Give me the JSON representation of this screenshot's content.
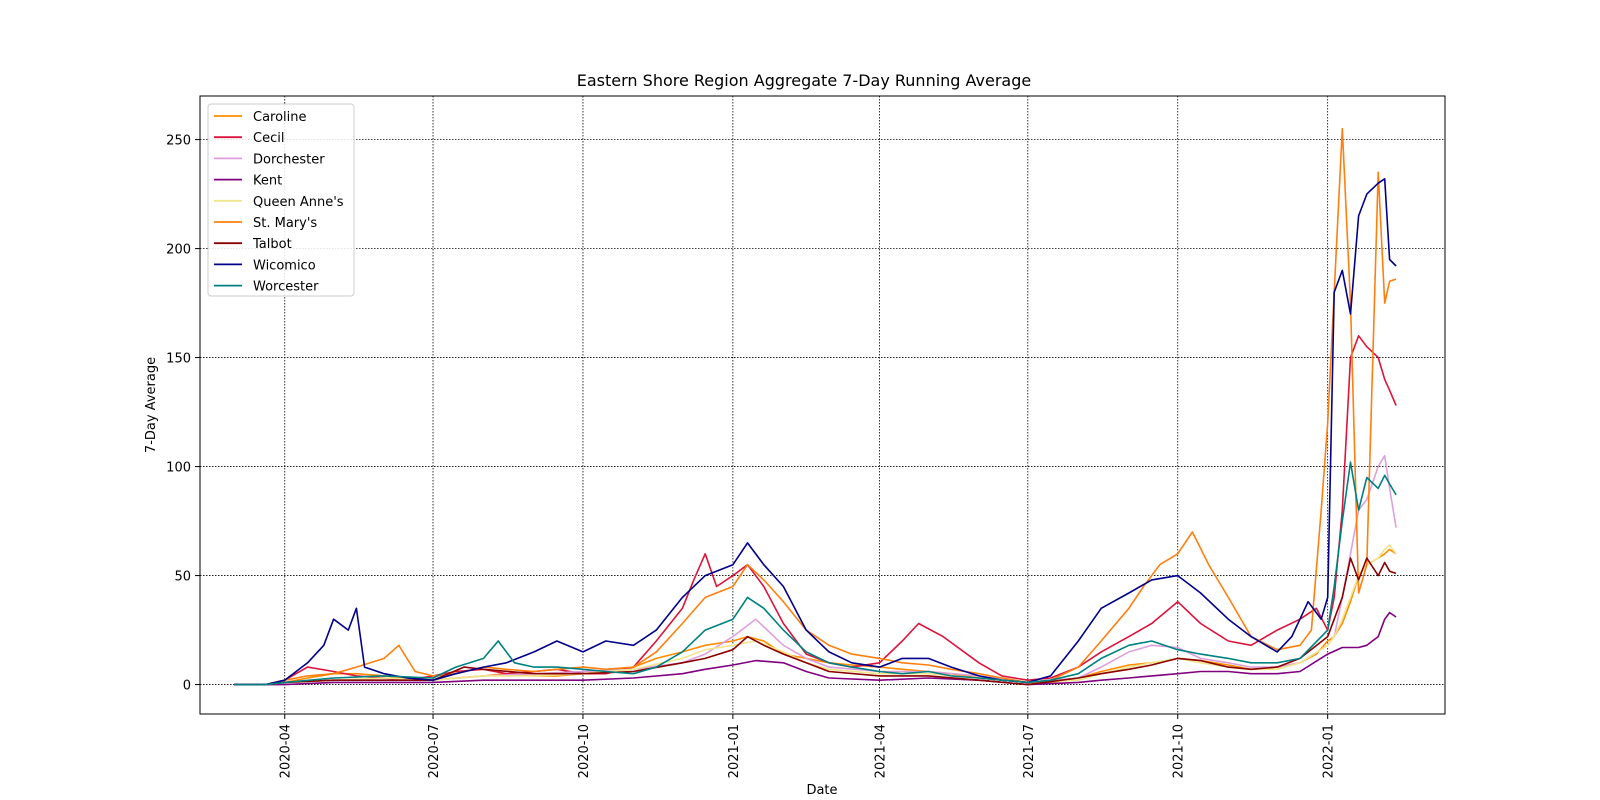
{
  "chart_data": {
    "type": "line",
    "title": "Eastern Shore Region Aggregate 7-Day Running Average",
    "xlabel": "Date",
    "ylabel": "7-Day Average",
    "x_ticks": [
      "2020-04",
      "2020-07",
      "2020-10",
      "2021-01",
      "2021-04",
      "2021-07",
      "2021-10",
      "2022-01"
    ],
    "x_tick_dates": [
      "2020-04-01",
      "2020-07-01",
      "2020-10-01",
      "2021-01-01",
      "2021-04-01",
      "2021-07-01",
      "2021-10-01",
      "2022-01-01"
    ],
    "y_ticks": [
      0,
      50,
      100,
      150,
      200,
      250
    ],
    "xlim": [
      "2020-02-09",
      "2022-03-14"
    ],
    "ylim": [
      -13.5,
      270
    ],
    "grid": true,
    "legend_position": "upper-left",
    "series": [
      {
        "name": "Caroline",
        "color": "#ff8c00",
        "x": [
          "2020-03-01",
          "2020-03-20",
          "2020-04-01",
          "2020-04-15",
          "2020-05-01",
          "2020-05-15",
          "2020-06-01",
          "2020-06-15",
          "2020-07-01",
          "2020-07-15",
          "2020-08-01",
          "2020-08-15",
          "2020-09-01",
          "2020-09-15",
          "2020-10-01",
          "2020-10-15",
          "2020-11-01",
          "2020-11-15",
          "2020-12-01",
          "2020-12-15",
          "2021-01-01",
          "2021-01-10",
          "2021-01-20",
          "2021-02-01",
          "2021-02-15",
          "2021-03-01",
          "2021-03-15",
          "2021-04-01",
          "2021-04-15",
          "2021-05-01",
          "2021-05-15",
          "2021-06-01",
          "2021-06-15",
          "2021-07-01",
          "2021-07-15",
          "2021-08-01",
          "2021-08-15",
          "2021-09-01",
          "2021-09-15",
          "2021-09-25",
          "2021-10-01",
          "2021-10-15",
          "2021-11-01",
          "2021-11-15",
          "2021-12-01",
          "2021-12-15",
          "2021-12-25",
          "2022-01-01",
          "2022-01-05",
          "2022-01-10",
          "2022-01-15",
          "2022-01-20",
          "2022-01-25",
          "2022-02-01",
          "2022-02-05",
          "2022-02-08",
          "2022-02-12"
        ],
        "y": [
          0,
          0,
          1,
          3,
          5,
          5,
          4,
          3,
          2,
          3,
          4,
          5,
          4,
          4,
          5,
          6,
          8,
          12,
          15,
          18,
          20,
          22,
          20,
          14,
          12,
          10,
          9,
          8,
          7,
          6,
          5,
          3,
          2,
          1,
          1,
          3,
          6,
          9,
          10,
          11,
          12,
          11,
          9,
          7,
          8,
          10,
          14,
          20,
          22,
          28,
          38,
          50,
          55,
          58,
          60,
          62,
          60
        ]
      },
      {
        "name": "Cecil",
        "color": "#dc143c",
        "x": [
          "2020-03-01",
          "2020-03-20",
          "2020-04-01",
          "2020-04-15",
          "2020-05-01",
          "2020-05-15",
          "2020-06-01",
          "2020-06-15",
          "2020-07-01",
          "2020-07-15",
          "2020-08-01",
          "2020-08-15",
          "2020-09-01",
          "2020-09-15",
          "2020-10-01",
          "2020-10-15",
          "2020-11-01",
          "2020-11-15",
          "2020-12-01",
          "2020-12-08",
          "2020-12-15",
          "2020-12-22",
          "2021-01-01",
          "2021-01-10",
          "2021-01-20",
          "2021-02-01",
          "2021-02-15",
          "2021-03-01",
          "2021-03-15",
          "2021-04-01",
          "2021-04-15",
          "2021-04-25",
          "2021-05-10",
          "2021-06-01",
          "2021-06-15",
          "2021-07-01",
          "2021-07-15",
          "2021-08-01",
          "2021-08-15",
          "2021-09-01",
          "2021-09-15",
          "2021-10-01",
          "2021-10-15",
          "2021-11-01",
          "2021-11-15",
          "2021-12-01",
          "2021-12-15",
          "2021-12-25",
          "2022-01-01",
          "2022-01-05",
          "2022-01-10",
          "2022-01-15",
          "2022-01-20",
          "2022-01-25",
          "2022-02-01",
          "2022-02-05",
          "2022-02-08",
          "2022-02-12"
        ],
        "y": [
          0,
          0,
          2,
          8,
          6,
          4,
          3,
          2,
          4,
          6,
          7,
          5,
          6,
          7,
          5,
          5,
          8,
          20,
          35,
          48,
          60,
          45,
          50,
          55,
          45,
          28,
          14,
          10,
          8,
          10,
          20,
          28,
          22,
          10,
          4,
          2,
          3,
          8,
          15,
          22,
          28,
          38,
          28,
          20,
          18,
          25,
          30,
          35,
          25,
          40,
          80,
          150,
          160,
          155,
          150,
          140,
          135,
          128
        ]
      },
      {
        "name": "Dorchester",
        "color": "#dda0dd",
        "x": [
          "2020-03-01",
          "2020-03-20",
          "2020-04-01",
          "2020-05-01",
          "2020-06-01",
          "2020-07-01",
          "2020-08-01",
          "2020-09-01",
          "2020-10-01",
          "2020-11-01",
          "2020-12-01",
          "2020-12-15",
          "2021-01-01",
          "2021-01-15",
          "2021-02-01",
          "2021-02-15",
          "2021-03-01",
          "2021-04-01",
          "2021-05-01",
          "2021-06-01",
          "2021-07-01",
          "2021-08-01",
          "2021-08-15",
          "2021-09-01",
          "2021-09-15",
          "2021-10-01",
          "2021-10-15",
          "2021-11-01",
          "2021-11-15",
          "2021-12-01",
          "2021-12-15",
          "2022-01-01",
          "2022-01-05",
          "2022-01-10",
          "2022-01-15",
          "2022-01-20",
          "2022-01-25",
          "2022-02-01",
          "2022-02-05",
          "2022-02-08",
          "2022-02-12"
        ],
        "y": [
          0,
          0,
          1,
          2,
          2,
          2,
          4,
          5,
          6,
          7,
          10,
          14,
          22,
          30,
          18,
          12,
          8,
          6,
          6,
          4,
          1,
          3,
          8,
          15,
          18,
          17,
          12,
          10,
          8,
          8,
          10,
          18,
          22,
          40,
          60,
          80,
          85,
          100,
          105,
          90,
          72
        ]
      },
      {
        "name": "Kent",
        "color": "#800080",
        "x": [
          "2020-03-01",
          "2020-03-20",
          "2020-04-01",
          "2020-05-01",
          "2020-06-01",
          "2020-07-01",
          "2020-08-01",
          "2020-09-01",
          "2020-10-01",
          "2020-11-01",
          "2020-12-01",
          "2020-12-15",
          "2021-01-01",
          "2021-01-15",
          "2021-02-01",
          "2021-02-15",
          "2021-03-01",
          "2021-04-01",
          "2021-05-01",
          "2021-06-01",
          "2021-07-01",
          "2021-08-01",
          "2021-08-15",
          "2021-09-01",
          "2021-09-15",
          "2021-10-01",
          "2021-10-15",
          "2021-11-01",
          "2021-11-15",
          "2021-12-01",
          "2021-12-15",
          "2022-01-01",
          "2022-01-10",
          "2022-01-20",
          "2022-01-25",
          "2022-02-01",
          "2022-02-05",
          "2022-02-08",
          "2022-02-12"
        ],
        "y": [
          0,
          0,
          0,
          1,
          1,
          1,
          2,
          2,
          2,
          3,
          5,
          7,
          9,
          11,
          10,
          6,
          3,
          2,
          3,
          2,
          0,
          1,
          2,
          3,
          4,
          5,
          6,
          6,
          5,
          5,
          6,
          14,
          17,
          17,
          18,
          22,
          30,
          33,
          31
        ]
      },
      {
        "name": "Queen Anne's",
        "color": "#f0e68c",
        "x": [
          "2020-03-01",
          "2020-03-20",
          "2020-04-01",
          "2020-05-01",
          "2020-06-01",
          "2020-07-01",
          "2020-08-01",
          "2020-09-01",
          "2020-10-01",
          "2020-11-01",
          "2020-12-01",
          "2020-12-15",
          "2021-01-01",
          "2021-01-15",
          "2021-02-01",
          "2021-02-15",
          "2021-03-01",
          "2021-04-01",
          "2021-05-01",
          "2021-06-01",
          "2021-07-01",
          "2021-08-01",
          "2021-08-15",
          "2021-09-01",
          "2021-09-15",
          "2021-10-01",
          "2021-10-15",
          "2021-11-01",
          "2021-11-15",
          "2021-12-01",
          "2021-12-15",
          "2022-01-01",
          "2022-01-05",
          "2022-01-10",
          "2022-01-15",
          "2022-01-20",
          "2022-01-25",
          "2022-02-01",
          "2022-02-05",
          "2022-02-08",
          "2022-02-12"
        ],
        "y": [
          0,
          0,
          1,
          2,
          3,
          2,
          4,
          4,
          5,
          7,
          12,
          16,
          18,
          20,
          15,
          10,
          7,
          5,
          5,
          3,
          1,
          2,
          5,
          8,
          10,
          12,
          10,
          8,
          7,
          7,
          10,
          18,
          22,
          30,
          40,
          50,
          55,
          58,
          62,
          64,
          60
        ]
      },
      {
        "name": "St. Mary's",
        "color": "#ff7f0e",
        "x": [
          "2020-03-01",
          "2020-03-20",
          "2020-04-01",
          "2020-04-15",
          "2020-05-01",
          "2020-05-15",
          "2020-06-01",
          "2020-06-10",
          "2020-06-20",
          "2020-07-01",
          "2020-07-15",
          "2020-08-01",
          "2020-08-15",
          "2020-09-01",
          "2020-09-15",
          "2020-10-01",
          "2020-10-15",
          "2020-11-01",
          "2020-11-15",
          "2020-12-01",
          "2020-12-15",
          "2021-01-01",
          "2021-01-10",
          "2021-01-20",
          "2021-02-01",
          "2021-02-15",
          "2021-03-01",
          "2021-03-15",
          "2021-04-01",
          "2021-04-15",
          "2021-05-01",
          "2021-05-15",
          "2021-06-01",
          "2021-06-15",
          "2021-07-01",
          "2021-07-15",
          "2021-08-01",
          "2021-08-15",
          "2021-09-01",
          "2021-09-10",
          "2021-09-20",
          "2021-10-01",
          "2021-10-10",
          "2021-10-20",
          "2021-11-01",
          "2021-11-15",
          "2021-12-01",
          "2021-12-15",
          "2021-12-22",
          "2021-12-28",
          "2022-01-01",
          "2022-01-05",
          "2022-01-10",
          "2022-01-15",
          "2022-01-20",
          "2022-01-25",
          "2022-02-01",
          "2022-02-05",
          "2022-02-08",
          "2022-02-12"
        ],
        "y": [
          0,
          0,
          2,
          4,
          5,
          8,
          12,
          18,
          6,
          4,
          5,
          8,
          7,
          6,
          7,
          8,
          7,
          8,
          15,
          28,
          40,
          45,
          55,
          48,
          38,
          25,
          18,
          14,
          12,
          10,
          9,
          7,
          5,
          3,
          1,
          2,
          8,
          20,
          35,
          45,
          55,
          60,
          70,
          55,
          40,
          22,
          16,
          18,
          25,
          80,
          120,
          180,
          255,
          175,
          42,
          55,
          235,
          175,
          185,
          186
        ]
      },
      {
        "name": "Talbot",
        "color": "#8b0000",
        "x": [
          "2020-03-01",
          "2020-03-20",
          "2020-04-01",
          "2020-05-01",
          "2020-06-01",
          "2020-07-01",
          "2020-07-20",
          "2020-08-01",
          "2020-09-01",
          "2020-10-01",
          "2020-11-01",
          "2020-12-01",
          "2020-12-15",
          "2021-01-01",
          "2021-01-10",
          "2021-01-20",
          "2021-02-01",
          "2021-02-15",
          "2021-03-01",
          "2021-04-01",
          "2021-05-01",
          "2021-06-01",
          "2021-07-01",
          "2021-08-01",
          "2021-08-15",
          "2021-09-01",
          "2021-09-15",
          "2021-10-01",
          "2021-10-15",
          "2021-11-01",
          "2021-11-15",
          "2021-12-01",
          "2021-12-15",
          "2022-01-01",
          "2022-01-05",
          "2022-01-10",
          "2022-01-15",
          "2022-01-20",
          "2022-01-25",
          "2022-02-01",
          "2022-02-05",
          "2022-02-08",
          "2022-02-12"
        ],
        "y": [
          0,
          0,
          1,
          2,
          2,
          2,
          8,
          7,
          5,
          5,
          6,
          10,
          12,
          16,
          22,
          18,
          14,
          10,
          6,
          4,
          4,
          2,
          0,
          3,
          5,
          7,
          9,
          12,
          11,
          8,
          7,
          8,
          12,
          22,
          30,
          40,
          58,
          48,
          58,
          50,
          56,
          52,
          51
        ]
      },
      {
        "name": "Wicomico",
        "color": "#00008b",
        "x": [
          "2020-03-01",
          "2020-03-20",
          "2020-04-01",
          "2020-04-15",
          "2020-04-25",
          "2020-05-01",
          "2020-05-10",
          "2020-05-15",
          "2020-05-20",
          "2020-06-01",
          "2020-06-15",
          "2020-07-01",
          "2020-07-15",
          "2020-08-01",
          "2020-08-15",
          "2020-09-01",
          "2020-09-15",
          "2020-10-01",
          "2020-10-15",
          "2020-11-01",
          "2020-11-15",
          "2020-12-01",
          "2020-12-15",
          "2021-01-01",
          "2021-01-10",
          "2021-01-20",
          "2021-02-01",
          "2021-02-15",
          "2021-03-01",
          "2021-03-15",
          "2021-04-01",
          "2021-04-15",
          "2021-05-01",
          "2021-05-15",
          "2021-06-01",
          "2021-06-15",
          "2021-07-01",
          "2021-07-15",
          "2021-08-01",
          "2021-08-15",
          "2021-09-01",
          "2021-09-15",
          "2021-10-01",
          "2021-10-15",
          "2021-11-01",
          "2021-11-15",
          "2021-12-01",
          "2021-12-10",
          "2021-12-20",
          "2021-12-28",
          "2022-01-01",
          "2022-01-05",
          "2022-01-10",
          "2022-01-15",
          "2022-01-20",
          "2022-01-25",
          "2022-02-01",
          "2022-02-05",
          "2022-02-08",
          "2022-02-12"
        ],
        "y": [
          0,
          0,
          2,
          10,
          18,
          30,
          25,
          35,
          8,
          5,
          3,
          2,
          5,
          8,
          10,
          15,
          20,
          15,
          20,
          18,
          25,
          40,
          50,
          55,
          65,
          55,
          45,
          25,
          15,
          10,
          8,
          12,
          12,
          8,
          4,
          2,
          1,
          4,
          20,
          35,
          42,
          48,
          50,
          42,
          30,
          22,
          15,
          22,
          38,
          30,
          40,
          180,
          190,
          170,
          215,
          225,
          230,
          232,
          195,
          192
        ]
      },
      {
        "name": "Worcester",
        "color": "#008080",
        "x": [
          "2020-03-01",
          "2020-03-20",
          "2020-04-01",
          "2020-05-01",
          "2020-06-01",
          "2020-07-01",
          "2020-07-15",
          "2020-08-01",
          "2020-08-10",
          "2020-08-20",
          "2020-09-01",
          "2020-09-15",
          "2020-10-01",
          "2020-10-15",
          "2020-11-01",
          "2020-11-15",
          "2020-12-01",
          "2020-12-15",
          "2021-01-01",
          "2021-01-10",
          "2021-01-20",
          "2021-02-01",
          "2021-02-15",
          "2021-03-01",
          "2021-03-15",
          "2021-04-01",
          "2021-04-15",
          "2021-05-01",
          "2021-05-15",
          "2021-06-01",
          "2021-06-15",
          "2021-07-01",
          "2021-07-15",
          "2021-08-01",
          "2021-08-15",
          "2021-09-01",
          "2021-09-15",
          "2021-10-01",
          "2021-10-15",
          "2021-11-01",
          "2021-11-15",
          "2021-12-01",
          "2021-12-15",
          "2022-01-01",
          "2022-01-05",
          "2022-01-10",
          "2022-01-15",
          "2022-01-20",
          "2022-01-25",
          "2022-02-01",
          "2022-02-05",
          "2022-02-08",
          "2022-02-12"
        ],
        "y": [
          0,
          0,
          1,
          3,
          4,
          3,
          8,
          12,
          20,
          10,
          8,
          8,
          7,
          6,
          5,
          8,
          15,
          25,
          30,
          40,
          35,
          25,
          15,
          10,
          8,
          6,
          5,
          6,
          4,
          3,
          2,
          1,
          2,
          5,
          12,
          18,
          20,
          16,
          14,
          12,
          10,
          10,
          12,
          25,
          45,
          75,
          102,
          80,
          95,
          90,
          96,
          92,
          87
        ]
      }
    ]
  }
}
